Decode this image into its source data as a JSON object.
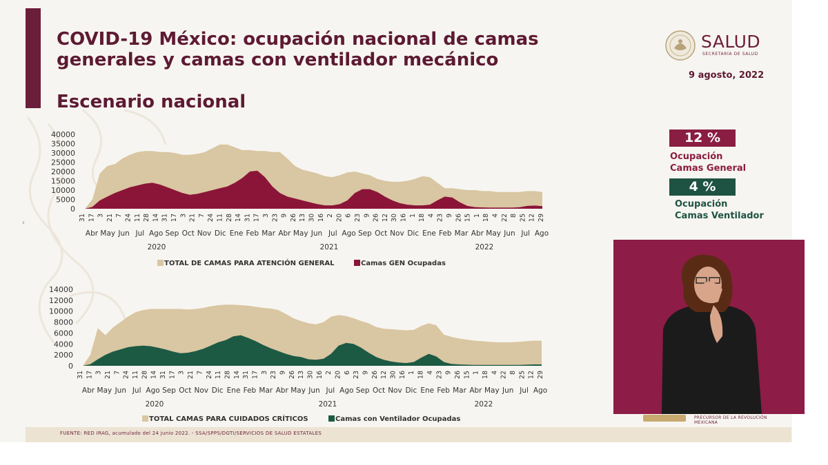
{
  "header": {
    "title": "COVID-19 México: ocupación nacional de camas generales y camas con ventilador mecánico",
    "subtitle": "Escenario nacional",
    "date": "9 agosto, 2022"
  },
  "logo": {
    "main": "SALUD",
    "sub": "SECRETARÍA DE SALUD"
  },
  "kpis": [
    {
      "value": "12 %",
      "label_line1": "Ocupación",
      "label_line2": "Camas General",
      "color": "#8a1d42"
    },
    {
      "value": "4 %",
      "label_line1": "Ocupación",
      "label_line2": "Camas Ventilador",
      "color": "#1e5343"
    }
  ],
  "footer": {
    "source": "FUENTE: RED IRAG, acumulado del 24 junio 2022.  - SSA/SPPS/DGTI/SERVICIOS DE SALUD ESTATALES"
  },
  "sign_strip": {
    "text": "PRECURSOR DE LA REVOLUCIÓN MEXICANA"
  },
  "colors": {
    "beige": "#d9c6a2",
    "maroon": "#8b1538",
    "green": "#1c5a44",
    "title": "#5d1a33"
  },
  "chart_data": [
    {
      "type": "area",
      "x_tick_labels": [
        "31",
        "17",
        "3",
        "21",
        "7",
        "24",
        "11",
        "28",
        "14",
        "31",
        "17",
        "3",
        "21",
        "7",
        "24",
        "11",
        "28",
        "14",
        "31",
        "17",
        "3",
        "23",
        "9",
        "26",
        "13",
        "30",
        "16",
        "2",
        "20",
        "6",
        "23",
        "9",
        "26",
        "12",
        "30",
        "16",
        "1",
        "18",
        "4",
        "23",
        "9",
        "26",
        "15",
        "1",
        "18",
        "4",
        "22",
        "8",
        "25",
        "12",
        "29"
      ],
      "month_labels": [
        "Abr",
        "May",
        "Jun",
        "Jul",
        "Ago",
        "Sep",
        "Oct",
        "Nov",
        "Dic",
        "Ene",
        "Feb",
        "Mar",
        "Abr",
        "May",
        "Jun",
        "Jul",
        "Ago",
        "Sep",
        "Oct",
        "Nov",
        "Dic",
        "Ene",
        "Feb",
        "Mar",
        "Abr",
        "May",
        "Jun",
        "Jul",
        "Ago"
      ],
      "year_labels": [
        "2020",
        "2021",
        "2022"
      ],
      "y_ticks": [
        0,
        5000,
        10000,
        15000,
        20000,
        25000,
        30000,
        35000,
        40000
      ],
      "ylim": [
        0,
        40000
      ],
      "grid": false,
      "legend_position": "bottom",
      "series": [
        {
          "name": "TOTAL DE CAMAS PARA ATENCIÓN GENERAL",
          "color": "#d9c6a2",
          "values": [
            0,
            5000,
            19000,
            23000,
            24000,
            27000,
            29000,
            30500,
            31000,
            31000,
            30500,
            30500,
            30000,
            29000,
            29000,
            29500,
            30500,
            32500,
            34500,
            34500,
            33000,
            31500,
            31500,
            31000,
            31000,
            30500,
            30500,
            27000,
            23000,
            21000,
            20000,
            19000,
            17500,
            17000,
            18000,
            19500,
            20000,
            19000,
            18000,
            16000,
            15000,
            14500,
            14500,
            15000,
            16000,
            17500,
            17000,
            14000,
            11000,
            11000,
            10500,
            10000,
            10000,
            9500,
            9500,
            9000,
            9000,
            9000,
            9000,
            9500,
            9500,
            9000
          ]
        },
        {
          "name": "Camas GEN Ocupadas",
          "color": "#8b1538",
          "values": [
            0,
            1000,
            4500,
            6500,
            8500,
            10000,
            11500,
            12500,
            13500,
            14000,
            13000,
            11500,
            10000,
            8500,
            7500,
            8000,
            9000,
            10000,
            11000,
            12000,
            14000,
            16500,
            20000,
            20500,
            17000,
            12000,
            8500,
            6500,
            5500,
            4500,
            3500,
            2500,
            1800,
            1800,
            2500,
            4500,
            8500,
            10500,
            10500,
            9000,
            6500,
            4500,
            3000,
            2200,
            1800,
            1800,
            2200,
            4500,
            6500,
            6000,
            3500,
            1500,
            900,
            700,
            600,
            600,
            600,
            600,
            800,
            1500,
            1700,
            1400
          ]
        }
      ]
    },
    {
      "type": "area",
      "x_tick_labels": [
        "31",
        "17",
        "3",
        "21",
        "7",
        "24",
        "11",
        "28",
        "14",
        "31",
        "17",
        "3",
        "21",
        "7",
        "24",
        "11",
        "28",
        "14",
        "31",
        "17",
        "3",
        "23",
        "9",
        "26",
        "13",
        "30",
        "16",
        "2",
        "20",
        "6",
        "23",
        "9",
        "26",
        "12",
        "30",
        "16",
        "1",
        "18",
        "4",
        "23",
        "9",
        "26",
        "15",
        "1",
        "18",
        "4",
        "22",
        "8",
        "25",
        "12",
        "29"
      ],
      "month_labels": [
        "Abr",
        "May",
        "Jun",
        "Jul",
        "Ago",
        "Sep",
        "Oct",
        "Nov",
        "Dic",
        "Ene",
        "Feb",
        "Mar",
        "Abr",
        "May",
        "Jun",
        "Jul",
        "Ago",
        "Sep",
        "Oct",
        "Nov",
        "Dic",
        "Ene",
        "Feb",
        "Mar",
        "Abr",
        "May",
        "Jun",
        "Jul",
        "Ago"
      ],
      "year_labels": [
        "2020",
        "2021",
        "2022"
      ],
      "y_ticks": [
        0,
        2000,
        4000,
        6000,
        8000,
        10000,
        12000,
        14000
      ],
      "ylim": [
        0,
        14000
      ],
      "grid": false,
      "legend_position": "bottom",
      "series": [
        {
          "name": "TOTAL CAMAS PARA CUIDADOS CRÍTICOS",
          "color": "#d9c6a2",
          "values": [
            0,
            2000,
            6900,
            5600,
            7000,
            8000,
            9000,
            9800,
            10200,
            10400,
            10400,
            10400,
            10400,
            10400,
            10300,
            10400,
            10600,
            10900,
            11100,
            11200,
            11200,
            11100,
            11000,
            10800,
            10600,
            10500,
            10200,
            9500,
            8700,
            8200,
            7800,
            7600,
            8000,
            9000,
            9300,
            9100,
            8700,
            8200,
            7800,
            7100,
            6800,
            6700,
            6600,
            6500,
            6600,
            7300,
            7800,
            7400,
            5700,
            5300,
            5000,
            4800,
            4600,
            4500,
            4400,
            4300,
            4300,
            4300,
            4400,
            4500,
            4600,
            4600
          ]
        },
        {
          "name": "Camas con Ventilador Ocupadas",
          "color": "#1c5a44",
          "values": [
            0,
            300,
            1200,
            2000,
            2600,
            3000,
            3400,
            3600,
            3700,
            3600,
            3300,
            3000,
            2600,
            2300,
            2400,
            2700,
            3100,
            3700,
            4300,
            4700,
            5400,
            5600,
            5100,
            4500,
            3800,
            3200,
            2700,
            2200,
            1800,
            1600,
            1200,
            1100,
            1300,
            2200,
            3700,
            4200,
            4000,
            3300,
            2400,
            1600,
            1100,
            800,
            600,
            500,
            700,
            1500,
            2200,
            1700,
            700,
            350,
            250,
            200,
            150,
            150,
            150,
            150,
            150,
            150,
            150,
            200,
            250,
            250
          ]
        }
      ]
    }
  ]
}
